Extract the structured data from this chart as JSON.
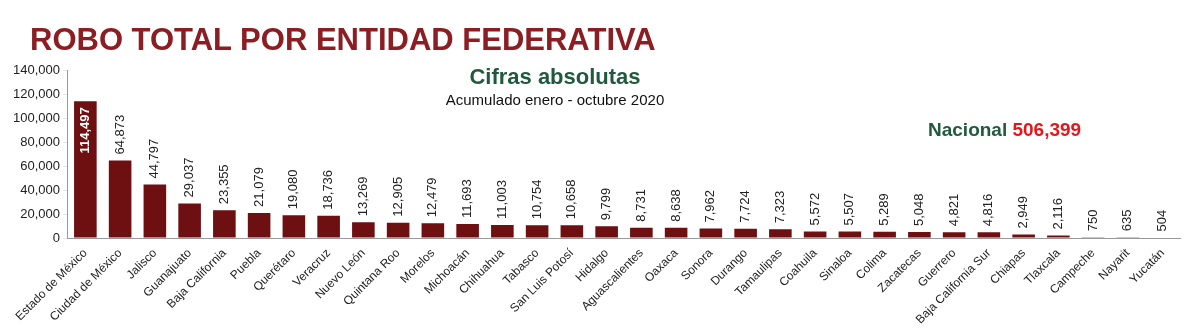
{
  "chart_data": {
    "type": "bar",
    "title": "ROBO TOTAL POR ENTIDAD FEDERATIVA",
    "subtitle": "Cifras absolutas",
    "annotations": [
      "Acumulado enero - octubre 2020",
      "Nacional",
      "506,399"
    ],
    "categories": [
      "Estado de México",
      "Ciudad de México",
      "Jalisco",
      "Guanajuato",
      "Baja California",
      "Puebla",
      "Querétaro",
      "Veracruz",
      "Nuevo León",
      "Quintana Roo",
      "Morelos",
      "Michoacán",
      "Chihuahua",
      "Tabasco",
      "San Luis Potosí",
      "Hidalgo",
      "Aguascalientes",
      "Oaxaca",
      "Sonora",
      "Durango",
      "Tamaulipas",
      "Coahuila",
      "Sinaloa",
      "Colima",
      "Zacatecas",
      "Guerrero",
      "Baja California Sur",
      "Chiapas",
      "Tlaxcala",
      "Campeche",
      "Nayarit",
      "Yucatán"
    ],
    "values": [
      114497,
      64873,
      44797,
      29037,
      23355,
      21079,
      19080,
      18736,
      13269,
      12905,
      12479,
      11693,
      11003,
      10754,
      10658,
      9799,
      8731,
      8638,
      7962,
      7724,
      7323,
      5572,
      5507,
      5289,
      5048,
      4821,
      4816,
      2949,
      2116,
      750,
      635,
      504
    ],
    "value_labels": [
      "114,497",
      "64,873",
      "44,797",
      "29,037",
      "23,355",
      "21,079",
      "19,080",
      "18,736",
      "13,269",
      "12,905",
      "12,479",
      "11,693",
      "11,003",
      "10,754",
      "10,658",
      "9,799",
      "8,731",
      "8,638",
      "7,962",
      "7,724",
      "7,323",
      "5,572",
      "5,507",
      "5,289",
      "5,048",
      "4,821",
      "4,816",
      "2,949",
      "2,116",
      "750",
      "635",
      "504"
    ],
    "color": "#6e0f12",
    "ylim": [
      0,
      140000
    ],
    "yticks": [
      0,
      {
        "value": 20000,
        "label": "20,000"
      },
      {
        "value": 40000,
        "label": "40,000"
      },
      {
        "value": 60000,
        "label": "60,000"
      },
      {
        "value": 80000,
        "label": "80,000"
      },
      {
        "value": 100000,
        "label": "100,000"
      },
      {
        "value": 120000,
        "label": "120,000"
      },
      {
        "value": 140000,
        "label": "140,000"
      }
    ],
    "grid": false
  }
}
